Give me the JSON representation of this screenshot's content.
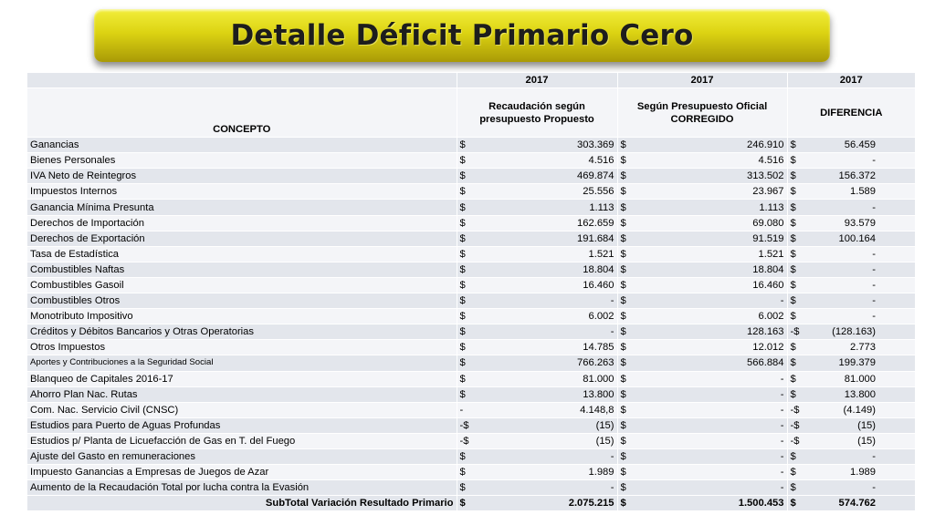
{
  "title": "Detalle Déficit Primario Cero",
  "header": {
    "years": [
      "2017",
      "2017",
      "2017"
    ],
    "concept_label": "CONCEPTO",
    "col1_label": "Recaudación según presupuesto Propuesto",
    "col2_label": "Según Presupuesto Oficial CORREGIDO",
    "col3_label": "DIFERENCIA"
  },
  "rows": [
    {
      "concepto": "Ganancias",
      "c1": [
        "$",
        "303.369"
      ],
      "c2": [
        "$",
        "246.910"
      ],
      "c3": [
        "$",
        "56.459"
      ]
    },
    {
      "concepto": "Bienes Personales",
      "c1": [
        "$",
        "4.516"
      ],
      "c2": [
        "$",
        "4.516"
      ],
      "c3": [
        "$",
        "-"
      ]
    },
    {
      "concepto": "IVA Neto de Reintegros",
      "c1": [
        "$",
        "469.874"
      ],
      "c2": [
        "$",
        "313.502"
      ],
      "c3": [
        "$",
        "156.372"
      ]
    },
    {
      "concepto": "Impuestos Internos",
      "c1": [
        "$",
        "25.556"
      ],
      "c2": [
        "$",
        "23.967"
      ],
      "c3": [
        "$",
        "1.589"
      ]
    },
    {
      "concepto": "Ganancia Mínima Presunta",
      "c1": [
        "$",
        "1.113"
      ],
      "c2": [
        "$",
        "1.113"
      ],
      "c3": [
        "$",
        "-"
      ]
    },
    {
      "concepto": "Derechos de Importación",
      "c1": [
        "$",
        "162.659"
      ],
      "c2": [
        "$",
        "69.080"
      ],
      "c3": [
        "$",
        "93.579"
      ]
    },
    {
      "concepto": "Derechos de Exportación",
      "c1": [
        "$",
        "191.684"
      ],
      "c2": [
        "$",
        "91.519"
      ],
      "c3": [
        "$",
        "100.164"
      ]
    },
    {
      "concepto": "Tasa de Estadística",
      "c1": [
        "$",
        "1.521"
      ],
      "c2": [
        "$",
        "1.521"
      ],
      "c3": [
        "$",
        "-"
      ]
    },
    {
      "concepto": "Combustibles Naftas",
      "c1": [
        "$",
        "18.804"
      ],
      "c2": [
        "$",
        "18.804"
      ],
      "c3": [
        "$",
        "-"
      ]
    },
    {
      "concepto": "Combustibles Gasoil",
      "c1": [
        "$",
        "16.460"
      ],
      "c2": [
        "$",
        "16.460"
      ],
      "c3": [
        "$",
        "-"
      ]
    },
    {
      "concepto": "Combustibles Otros",
      "c1": [
        "$",
        "-"
      ],
      "c2": [
        "$",
        "-"
      ],
      "c3": [
        "$",
        "-"
      ]
    },
    {
      "concepto": "Monotributo Impositivo",
      "c1": [
        "$",
        "6.002"
      ],
      "c2": [
        "$",
        "6.002"
      ],
      "c3": [
        "$",
        "-"
      ]
    },
    {
      "concepto": "Créditos y Débitos Bancarios y Otras Operatorias",
      "c1": [
        "$",
        "-"
      ],
      "c2": [
        "$",
        "128.163"
      ],
      "c3": [
        "-$",
        "(128.163)"
      ]
    },
    {
      "concepto": "Otros Impuestos",
      "c1": [
        "$",
        "14.785"
      ],
      "c2": [
        "$",
        "12.012"
      ],
      "c3": [
        "$",
        "2.773"
      ]
    },
    {
      "concepto": "Aportes y Contribuciones a la Seguridad Social",
      "small": true,
      "c1": [
        "$",
        "766.263"
      ],
      "c2": [
        "$",
        "566.884"
      ],
      "c3": [
        "$",
        "199.379"
      ]
    },
    {
      "concepto": "Blanqueo de Capitales 2016-17",
      "c1": [
        "$",
        "81.000"
      ],
      "c2": [
        "$",
        "-"
      ],
      "c3": [
        "$",
        "81.000"
      ]
    },
    {
      "concepto": "Ahorro Plan Nac. Rutas",
      "c1": [
        "$",
        "13.800"
      ],
      "c2": [
        "$",
        "-"
      ],
      "c3": [
        "$",
        "13.800"
      ]
    },
    {
      "concepto": "Com. Nac. Servicio Civil (CNSC)",
      "c1": [
        "-",
        "4.148,8"
      ],
      "c2": [
        "$",
        "-"
      ],
      "c3": [
        "-$",
        "(4.149)"
      ]
    },
    {
      "concepto": "Estudios para Puerto de Aguas Profundas",
      "c1": [
        "-$",
        "(15)"
      ],
      "c2": [
        "$",
        "-"
      ],
      "c3": [
        "-$",
        "(15)"
      ]
    },
    {
      "concepto": "Estudios p/ Planta de Licuefacción de Gas en T. del Fuego",
      "c1": [
        "-$",
        "(15)"
      ],
      "c2": [
        "$",
        "-"
      ],
      "c3": [
        "-$",
        "(15)"
      ]
    },
    {
      "concepto": "Ajuste del Gasto en remuneraciones",
      "c1": [
        "$",
        "-"
      ],
      "c2": [
        "$",
        "-"
      ],
      "c3": [
        "$",
        "-"
      ]
    },
    {
      "concepto": "Impuesto Ganancias a Empresas de Juegos de Azar",
      "c1": [
        "$",
        "1.989"
      ],
      "c2": [
        "$",
        "-"
      ],
      "c3": [
        "$",
        "1.989"
      ]
    },
    {
      "concepto": "Aumento de la Recaudación Total por  lucha contra la Evasión",
      "c1": [
        "$",
        "-"
      ],
      "c2": [
        "$",
        "-"
      ],
      "c3": [
        "$",
        "-"
      ]
    }
  ],
  "total": {
    "label": "SubTotal Variación Resultado Primario",
    "c1": [
      "$",
      "2.075.215"
    ],
    "c2": [
      "$",
      "1.500.453"
    ],
    "c3": [
      "$",
      "574.762"
    ]
  }
}
